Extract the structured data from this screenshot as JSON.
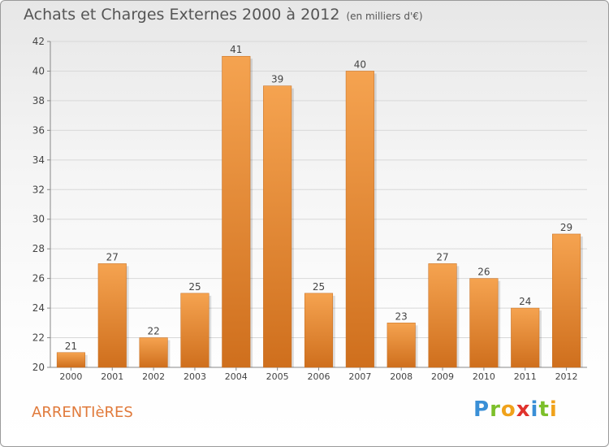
{
  "title": "Achats et Charges Externes 2000 à 2012",
  "unit_label": "(en milliers d'€)",
  "commune": "ARRENTIèRES",
  "brand": {
    "letters": [
      "P",
      "r",
      "o",
      "x",
      "i",
      "t",
      "i"
    ],
    "colors": [
      "#3a8fd6",
      "#7cbf2a",
      "#f0a21b",
      "#e0322d",
      "#3a8fd6",
      "#7cbf2a",
      "#f0a21b"
    ]
  },
  "colors": {
    "bar_light": "#f5a350",
    "bar_dark": "#cf6f1d",
    "axis": "#888888",
    "grid": "#d8d8d8",
    "text": "#444444"
  },
  "chart_data": {
    "type": "bar",
    "categories": [
      "2000",
      "2001",
      "2002",
      "2003",
      "2004",
      "2005",
      "2006",
      "2007",
      "2008",
      "2009",
      "2010",
      "2011",
      "2012"
    ],
    "values": [
      21,
      27,
      22,
      25,
      41,
      39,
      25,
      40,
      23,
      27,
      26,
      24,
      29
    ],
    "title": "Achats et Charges Externes 2000 à 2012",
    "ylim": [
      20,
      42
    ],
    "yticks": [
      20,
      22,
      24,
      26,
      28,
      30,
      32,
      34,
      36,
      38,
      40,
      42
    ],
    "grid": true
  }
}
